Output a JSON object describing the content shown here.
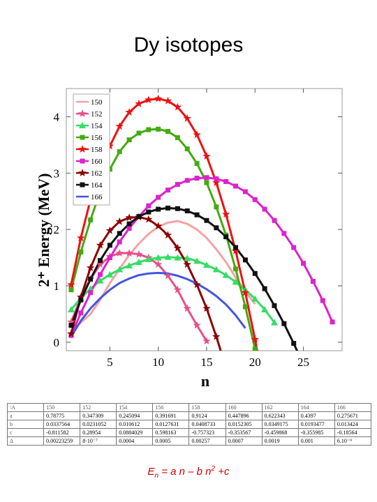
{
  "title": "Dy isotopes",
  "chart_data": {
    "type": "line",
    "title": "Dy isotopes",
    "xlabel": "n",
    "ylabel": "2⁺ Energy (MeV)",
    "xlim": [
      0.5,
      29
    ],
    "ylim": [
      -0.15,
      4.5
    ],
    "xticks": [
      5,
      10,
      15,
      20,
      25
    ],
    "yticks": [
      0,
      1,
      2,
      3,
      4
    ],
    "grid": false,
    "legend_position": "top-left",
    "series": [
      {
        "name": "150",
        "color": "#f4a3a3",
        "marker": "none",
        "x": [
          1,
          2,
          3,
          4,
          5,
          6,
          7,
          8,
          9,
          10,
          11,
          12,
          13,
          14,
          15,
          16,
          17,
          18,
          19,
          20
        ],
        "y": [
          0.2,
          0.35,
          0.5,
          0.75,
          1.05,
          1.3,
          1.55,
          1.75,
          1.92,
          2.05,
          2.12,
          2.15,
          2.1,
          2.0,
          1.85,
          1.65,
          1.42,
          1.15,
          0.9,
          0.68
        ]
      },
      {
        "name": "152",
        "color": "#e8508a",
        "marker": "star",
        "x": [
          1,
          2,
          3,
          4,
          5,
          6,
          7,
          8,
          9,
          10,
          11,
          12,
          13,
          14,
          15
        ],
        "y": [
          0.36,
          0.8,
          1.12,
          1.38,
          1.52,
          1.58,
          1.58,
          1.56,
          1.5,
          1.38,
          1.18,
          0.93,
          0.6,
          0.3,
          0.02
        ]
      },
      {
        "name": "154",
        "color": "#33dd66",
        "marker": "triangle",
        "x": [
          1,
          2,
          3,
          4,
          5,
          6,
          7,
          8,
          9,
          10,
          11,
          12,
          13,
          14,
          15,
          16,
          17,
          18,
          19,
          20,
          21,
          22
        ],
        "y": [
          0.58,
          0.78,
          0.95,
          1.09,
          1.2,
          1.29,
          1.36,
          1.42,
          1.47,
          1.5,
          1.51,
          1.5,
          1.49,
          1.44,
          1.37,
          1.29,
          1.19,
          1.07,
          0.93,
          0.77,
          0.58,
          0.35
        ]
      },
      {
        "name": "156",
        "color": "#44aa11",
        "marker": "square",
        "x": [
          1,
          2,
          3,
          4,
          5,
          6,
          7,
          8,
          9,
          10,
          11,
          12,
          13,
          14,
          15,
          16,
          17,
          18,
          19,
          20
        ],
        "y": [
          0.93,
          1.6,
          2.17,
          2.67,
          3.07,
          3.38,
          3.59,
          3.71,
          3.77,
          3.78,
          3.74,
          3.63,
          3.43,
          3.17,
          2.83,
          2.4,
          1.9,
          1.3,
          0.63,
          -0.12
        ]
      },
      {
        "name": "158",
        "color": "#ee1111",
        "marker": "star",
        "x": [
          1,
          2,
          3,
          4,
          5,
          6,
          7,
          8,
          9,
          10,
          11,
          12,
          13,
          14,
          15,
          16,
          17,
          18,
          19,
          20,
          21
        ],
        "y": [
          1.02,
          1.85,
          2.53,
          3.05,
          3.48,
          3.83,
          4.08,
          4.23,
          4.3,
          4.32,
          4.28,
          4.17,
          3.97,
          3.68,
          3.3,
          2.83,
          2.27,
          1.62,
          0.88,
          0.05,
          -0.85
        ]
      },
      {
        "name": "160",
        "color": "#dd22cc",
        "marker": "square",
        "x": [
          1,
          2,
          3,
          4,
          5,
          6,
          7,
          8,
          9,
          10,
          11,
          12,
          13,
          14,
          15,
          16,
          17,
          18,
          19,
          20,
          21,
          22,
          23,
          24,
          25,
          26,
          27,
          28
        ],
        "y": [
          0.12,
          0.52,
          0.88,
          1.2,
          1.5,
          1.78,
          2.02,
          2.23,
          2.42,
          2.57,
          2.7,
          2.8,
          2.87,
          2.91,
          2.92,
          2.9,
          2.85,
          2.77,
          2.67,
          2.53,
          2.36,
          2.16,
          1.93,
          1.68,
          1.4,
          1.08,
          0.74,
          0.36
        ]
      },
      {
        "name": "162",
        "color": "#8b0000",
        "marker": "star",
        "x": [
          1,
          2,
          3,
          4,
          5,
          6,
          7,
          8,
          9,
          10,
          11,
          12,
          13,
          14,
          15,
          16,
          17
        ],
        "y": [
          0.15,
          0.8,
          1.32,
          1.72,
          1.98,
          2.14,
          2.21,
          2.22,
          2.18,
          2.06,
          1.9,
          1.67,
          1.38,
          1.02,
          0.6,
          0.1,
          -0.45
        ]
      },
      {
        "name": "164",
        "color": "#111111",
        "marker": "square",
        "x": [
          1,
          2,
          3,
          4,
          5,
          6,
          7,
          8,
          9,
          10,
          11,
          12,
          13,
          14,
          15,
          16,
          17,
          18,
          19,
          20,
          21,
          22,
          23,
          24,
          25,
          26
        ],
        "y": [
          0.3,
          0.75,
          1.12,
          1.45,
          1.72,
          1.93,
          2.1,
          2.23,
          2.31,
          2.36,
          2.38,
          2.37,
          2.33,
          2.26,
          2.16,
          2.03,
          1.87,
          1.68,
          1.46,
          1.22,
          0.95,
          0.65,
          0.33,
          -0.02,
          -0.4,
          -0.8
        ]
      },
      {
        "name": "166",
        "color": "#4455dd",
        "marker": "none",
        "x": [
          1,
          2,
          3,
          4,
          5,
          6,
          7,
          8,
          9,
          10,
          11,
          12,
          13,
          14,
          15,
          16,
          17,
          18,
          19
        ],
        "y": [
          0.1,
          0.38,
          0.6,
          0.78,
          0.93,
          1.05,
          1.13,
          1.19,
          1.22,
          1.23,
          1.22,
          1.18,
          1.12,
          1.04,
          0.94,
          0.82,
          0.67,
          0.48,
          0.25
        ]
      }
    ]
  },
  "params_table": {
    "corner": "\\A",
    "headers": [
      "150",
      "152",
      "154",
      "156",
      "158",
      "160",
      "162",
      "164",
      "166"
    ],
    "rows": [
      {
        "label": "a",
        "values": [
          "0.78775",
          "0.347309",
          "0.245094",
          "0.391691",
          "0.9124",
          "0.447896",
          "0.622343",
          "0.4397",
          "0.275671"
        ]
      },
      {
        "label": "b",
        "values": [
          "0.0337564",
          "0.0231052",
          "0.010612",
          "0.0127631",
          "0.0408733",
          "0.0152305",
          "0.0349175",
          "0.0193477",
          "0.013424"
        ]
      },
      {
        "label": "c",
        "values": [
          "-0.811582",
          "0.28954",
          "0.0884029",
          "0.598163",
          "-0.757323",
          "-0.353567",
          "-0.459868",
          "-0.355985",
          "-0.18564"
        ]
      },
      {
        "label": "Δ",
        "values": [
          "0.00223259",
          "8·10⁻⁷",
          "0.0004",
          "0.0005",
          "0.00257",
          "0.0007",
          "0.0019",
          "0.001",
          "6.10⁻⁹"
        ]
      }
    ]
  },
  "formula": {
    "E": "E",
    "sub": "n",
    "middle": " = a n – b n",
    "sup": "2",
    "end": " +c"
  }
}
